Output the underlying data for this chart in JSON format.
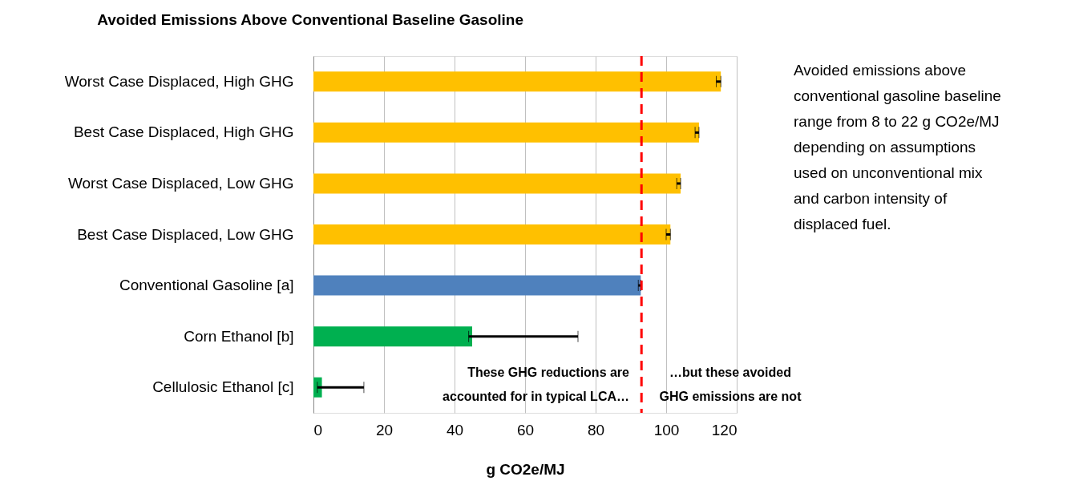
{
  "chart_data": {
    "type": "bar",
    "orientation": "horizontal",
    "title": "Avoided Emissions Above Conventional Baseline Gasoline",
    "xlabel": "g CO2e/MJ",
    "categories": [
      "Worst Case Displaced, High GHG",
      "Best Case Displaced, High GHG",
      "Worst Case Displaced, Low GHG",
      "Best Case Displaced, Low GHG",
      "Conventional Gasoline [a]",
      "Corn Ethanol [b]",
      "Cellulosic Ethanol [c]"
    ],
    "values": [
      115.5,
      109.3,
      104.1,
      101.2,
      92.8,
      45,
      2.4
    ],
    "errors": [
      [
        114.2,
        115.5
      ],
      [
        108.2,
        109.3
      ],
      [
        103,
        104.1
      ],
      [
        100,
        101.2
      ],
      [
        92.1,
        92.8
      ],
      [
        44,
        75
      ],
      [
        1.1,
        14.3
      ]
    ],
    "colors": [
      "#ffc000",
      "#ffc000",
      "#ffc000",
      "#ffc000",
      "#4f81bd",
      "#00b050",
      "#00b050"
    ],
    "xlim": [
      0,
      120
    ],
    "xticks": [
      0,
      20,
      40,
      60,
      80,
      100,
      120
    ],
    "grid": "x",
    "ref_lines": [
      {
        "axis": "x",
        "value": 93,
        "label": null,
        "color": "#ff0000",
        "line_style": "dashed"
      }
    ],
    "annotations": [
      "Avoided emissions above\nconventional gasoline baseline\nrange from 8 to 22 g CO2e/MJ\ndepending on assumptions\nused on unconventional mix\nand carbon intensity of\ndisplaced fuel.",
      "These GHG reductions are\naccounted for in typical LCA…",
      "…but these avoided\nGHG emissions are not"
    ]
  }
}
